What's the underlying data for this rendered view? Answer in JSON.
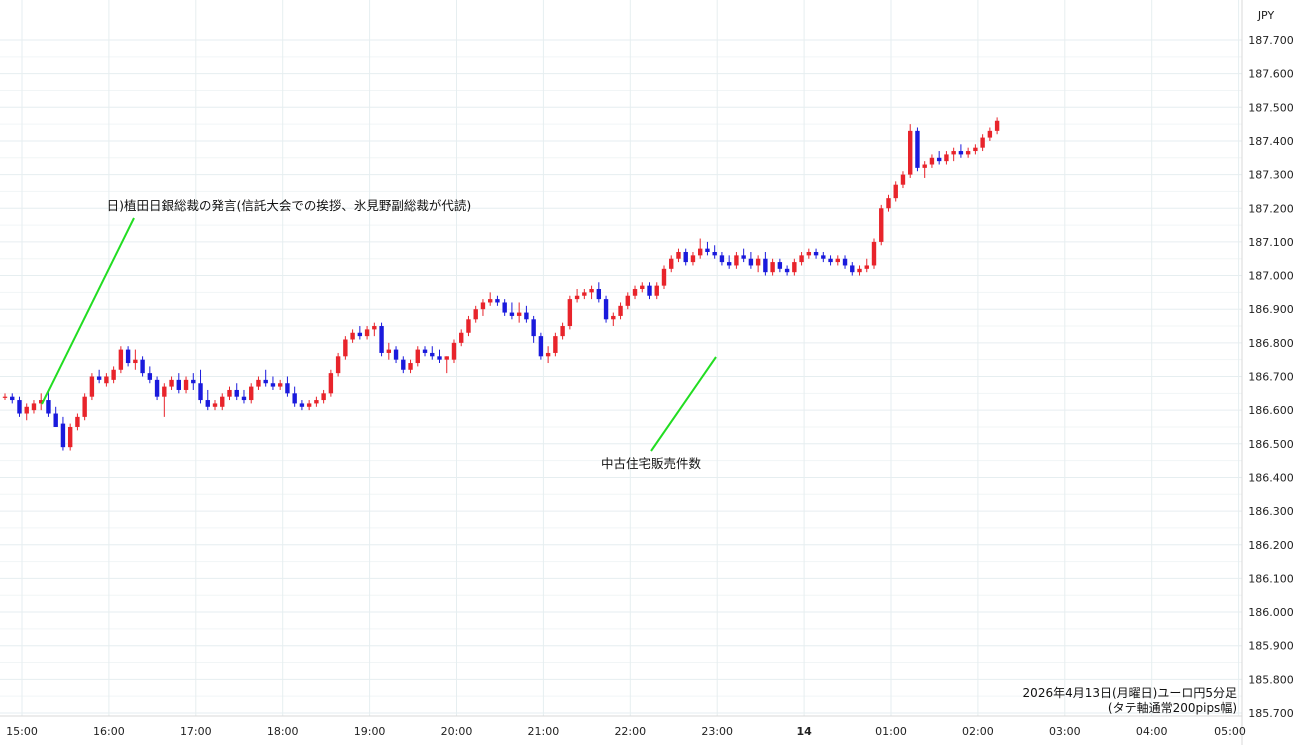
{
  "chart_data": {
    "type": "candlestick",
    "title": "2026年4月13日(月曜日)ユーロ円5分足",
    "subtitle": "(タテ軸通常200pips幅)",
    "currency_label": "JPY",
    "ylim": [
      185.7,
      187.8
    ],
    "y_ticks": [
      "187.700",
      "187.600",
      "187.500",
      "187.400",
      "187.300",
      "187.200",
      "187.100",
      "187.000",
      "186.900",
      "186.800",
      "186.700",
      "186.600",
      "186.500",
      "186.400",
      "186.300",
      "186.200",
      "186.100",
      "186.000",
      "185.900",
      "185.800",
      "185.700"
    ],
    "x_tick_labels": [
      "15:00",
      "16:00",
      "17:00",
      "18:00",
      "19:00",
      "20:00",
      "21:00",
      "22:00",
      "23:00",
      "14",
      "01:00",
      "02:00",
      "03:00",
      "04:00",
      "05:00"
    ],
    "colors": {
      "up": "#e8242b",
      "down": "#1a1adc",
      "grid": "#e6eef0",
      "annotation_line": "#22dd22"
    },
    "annotations": [
      {
        "text": "日)植田日銀総裁の発言(信託大会での挨拶、氷見野副総裁が代読)",
        "time": "15:05",
        "price": 186.62
      },
      {
        "text": "中古住宅販売件数",
        "time": "23:00",
        "price": 186.75
      }
    ],
    "candles": [
      [
        186.64,
        186.65,
        186.63,
        186.64
      ],
      [
        186.64,
        186.65,
        186.62,
        186.63
      ],
      [
        186.63,
        186.64,
        186.58,
        186.59
      ],
      [
        186.59,
        186.62,
        186.57,
        186.61
      ],
      [
        186.6,
        186.63,
        186.59,
        186.62
      ],
      [
        186.62,
        186.65,
        186.6,
        186.63
      ],
      [
        186.63,
        186.66,
        186.58,
        186.59
      ],
      [
        186.59,
        186.61,
        186.55,
        186.55
      ],
      [
        186.56,
        186.58,
        186.48,
        186.49
      ],
      [
        186.49,
        186.56,
        186.48,
        186.55
      ],
      [
        186.55,
        186.59,
        186.54,
        186.58
      ],
      [
        186.58,
        186.65,
        186.57,
        186.64
      ],
      [
        186.64,
        186.71,
        186.63,
        186.7
      ],
      [
        186.7,
        186.72,
        186.68,
        186.69
      ],
      [
        186.68,
        186.71,
        186.67,
        186.7
      ],
      [
        186.69,
        186.73,
        186.68,
        186.72
      ],
      [
        186.72,
        186.79,
        186.71,
        186.78
      ],
      [
        186.78,
        186.79,
        186.73,
        186.74
      ],
      [
        186.74,
        186.78,
        186.72,
        186.75
      ],
      [
        186.75,
        186.76,
        186.7,
        186.71
      ],
      [
        186.71,
        186.73,
        186.68,
        186.69
      ],
      [
        186.69,
        186.7,
        186.63,
        186.64
      ],
      [
        186.64,
        186.68,
        186.58,
        186.67
      ],
      [
        186.67,
        186.7,
        186.66,
        186.69
      ],
      [
        186.69,
        186.71,
        186.65,
        186.66
      ],
      [
        186.66,
        186.7,
        186.65,
        186.69
      ],
      [
        186.69,
        186.71,
        186.66,
        186.68
      ],
      [
        186.68,
        186.72,
        186.62,
        186.63
      ],
      [
        186.63,
        186.66,
        186.6,
        186.61
      ],
      [
        186.61,
        186.63,
        186.6,
        186.62
      ],
      [
        186.61,
        186.65,
        186.6,
        186.64
      ],
      [
        186.64,
        186.67,
        186.63,
        186.66
      ],
      [
        186.66,
        186.68,
        186.63,
        186.64
      ],
      [
        186.64,
        186.66,
        186.62,
        186.63
      ],
      [
        186.63,
        186.68,
        186.62,
        186.67
      ],
      [
        186.67,
        186.7,
        186.66,
        186.69
      ],
      [
        186.69,
        186.72,
        186.67,
        186.68
      ],
      [
        186.68,
        186.7,
        186.66,
        186.67
      ],
      [
        186.67,
        186.69,
        186.66,
        186.68
      ],
      [
        186.68,
        186.7,
        186.64,
        186.65
      ],
      [
        186.65,
        186.67,
        186.61,
        186.62
      ],
      [
        186.62,
        186.63,
        186.6,
        186.61
      ],
      [
        186.61,
        186.63,
        186.6,
        186.62
      ],
      [
        186.62,
        186.64,
        186.61,
        186.63
      ],
      [
        186.63,
        186.66,
        186.62,
        186.65
      ],
      [
        186.65,
        186.72,
        186.64,
        186.71
      ],
      [
        186.71,
        186.77,
        186.7,
        186.76
      ],
      [
        186.76,
        186.82,
        186.75,
        186.81
      ],
      [
        186.81,
        186.84,
        186.8,
        186.83
      ],
      [
        186.83,
        186.85,
        186.81,
        186.82
      ],
      [
        186.82,
        186.85,
        186.81,
        186.84
      ],
      [
        186.84,
        186.86,
        186.82,
        186.85
      ],
      [
        186.85,
        186.86,
        186.76,
        186.77
      ],
      [
        186.77,
        186.8,
        186.75,
        186.78
      ],
      [
        186.78,
        186.79,
        186.74,
        186.75
      ],
      [
        186.75,
        186.76,
        186.71,
        186.72
      ],
      [
        186.72,
        186.75,
        186.71,
        186.74
      ],
      [
        186.74,
        186.79,
        186.73,
        186.78
      ],
      [
        186.78,
        186.79,
        186.76,
        186.77
      ],
      [
        186.77,
        186.79,
        186.75,
        186.76
      ],
      [
        186.76,
        186.78,
        186.74,
        186.75
      ],
      [
        186.75,
        186.76,
        186.71,
        186.76
      ],
      [
        186.75,
        186.81,
        186.74,
        186.8
      ],
      [
        186.8,
        186.84,
        186.79,
        186.83
      ],
      [
        186.83,
        186.88,
        186.82,
        186.87
      ],
      [
        186.87,
        186.91,
        186.86,
        186.9
      ],
      [
        186.9,
        186.93,
        186.88,
        186.92
      ],
      [
        186.92,
        186.95,
        186.91,
        186.93
      ],
      [
        186.93,
        186.94,
        186.91,
        186.92
      ],
      [
        186.92,
        186.93,
        186.88,
        186.89
      ],
      [
        186.89,
        186.92,
        186.87,
        186.88
      ],
      [
        186.88,
        186.92,
        186.86,
        186.89
      ],
      [
        186.89,
        186.91,
        186.86,
        186.87
      ],
      [
        186.87,
        186.88,
        186.8,
        186.82
      ],
      [
        186.82,
        186.83,
        186.75,
        186.76
      ],
      [
        186.76,
        186.79,
        186.74,
        186.77
      ],
      [
        186.77,
        186.83,
        186.76,
        186.82
      ],
      [
        186.82,
        186.86,
        186.81,
        186.85
      ],
      [
        186.85,
        186.94,
        186.84,
        186.93
      ],
      [
        186.93,
        186.96,
        186.92,
        186.94
      ],
      [
        186.94,
        186.96,
        186.93,
        186.95
      ],
      [
        186.95,
        186.97,
        186.93,
        186.96
      ],
      [
        186.96,
        186.98,
        186.92,
        186.93
      ],
      [
        186.93,
        186.94,
        186.86,
        186.87
      ],
      [
        186.87,
        186.89,
        186.85,
        186.88
      ],
      [
        186.88,
        186.92,
        186.87,
        186.91
      ],
      [
        186.91,
        186.95,
        186.9,
        186.94
      ],
      [
        186.94,
        186.97,
        186.93,
        186.96
      ],
      [
        186.96,
        186.98,
        186.95,
        186.97
      ],
      [
        186.97,
        186.98,
        186.93,
        186.94
      ],
      [
        186.94,
        186.98,
        186.93,
        186.97
      ],
      [
        186.97,
        187.03,
        186.96,
        187.02
      ],
      [
        187.02,
        187.06,
        187.01,
        187.05
      ],
      [
        187.05,
        187.08,
        187.04,
        187.07
      ],
      [
        187.07,
        187.08,
        187.03,
        187.04
      ],
      [
        187.04,
        187.07,
        187.03,
        187.06
      ],
      [
        187.06,
        187.11,
        187.05,
        187.08
      ],
      [
        187.08,
        187.1,
        187.06,
        187.07
      ],
      [
        187.07,
        187.09,
        187.05,
        187.06
      ],
      [
        187.06,
        187.07,
        187.03,
        187.04
      ],
      [
        187.04,
        187.06,
        187.02,
        187.03
      ],
      [
        187.03,
        187.07,
        187.02,
        187.06
      ],
      [
        187.06,
        187.08,
        187.04,
        187.05
      ],
      [
        187.05,
        187.07,
        187.02,
        187.03
      ],
      [
        187.03,
        187.06,
        187.01,
        187.05
      ],
      [
        187.05,
        187.07,
        187.0,
        187.01
      ],
      [
        187.01,
        187.05,
        187.0,
        187.04
      ],
      [
        187.04,
        187.05,
        187.01,
        187.02
      ],
      [
        187.02,
        187.03,
        187.0,
        187.01
      ],
      [
        187.01,
        187.05,
        187.0,
        187.04
      ],
      [
        187.04,
        187.07,
        187.03,
        187.06
      ],
      [
        187.06,
        187.08,
        187.05,
        187.07
      ],
      [
        187.07,
        187.08,
        187.05,
        187.06
      ],
      [
        187.06,
        187.07,
        187.04,
        187.05
      ],
      [
        187.05,
        187.06,
        187.03,
        187.04
      ],
      [
        187.04,
        187.06,
        187.03,
        187.05
      ],
      [
        187.05,
        187.06,
        187.02,
        187.03
      ],
      [
        187.03,
        187.04,
        187.0,
        187.01
      ],
      [
        187.01,
        187.03,
        187.0,
        187.02
      ],
      [
        187.02,
        187.05,
        187.01,
        187.03
      ],
      [
        187.03,
        187.11,
        187.02,
        187.1
      ],
      [
        187.1,
        187.21,
        187.09,
        187.2
      ],
      [
        187.2,
        187.24,
        187.19,
        187.23
      ],
      [
        187.23,
        187.28,
        187.22,
        187.27
      ],
      [
        187.27,
        187.31,
        187.26,
        187.3
      ],
      [
        187.3,
        187.45,
        187.29,
        187.43
      ],
      [
        187.43,
        187.44,
        187.31,
        187.32
      ],
      [
        187.32,
        187.34,
        187.29,
        187.33
      ],
      [
        187.33,
        187.36,
        187.32,
        187.35
      ],
      [
        187.35,
        187.37,
        187.33,
        187.34
      ],
      [
        187.34,
        187.37,
        187.33,
        187.36
      ],
      [
        187.36,
        187.38,
        187.34,
        187.37
      ],
      [
        187.37,
        187.39,
        187.35,
        187.36
      ],
      [
        187.36,
        187.38,
        187.35,
        187.37
      ],
      [
        187.37,
        187.39,
        187.36,
        187.38
      ],
      [
        187.38,
        187.42,
        187.37,
        187.41
      ],
      [
        187.41,
        187.44,
        187.4,
        187.43
      ],
      [
        187.43,
        187.47,
        187.42,
        187.46
      ]
    ]
  }
}
